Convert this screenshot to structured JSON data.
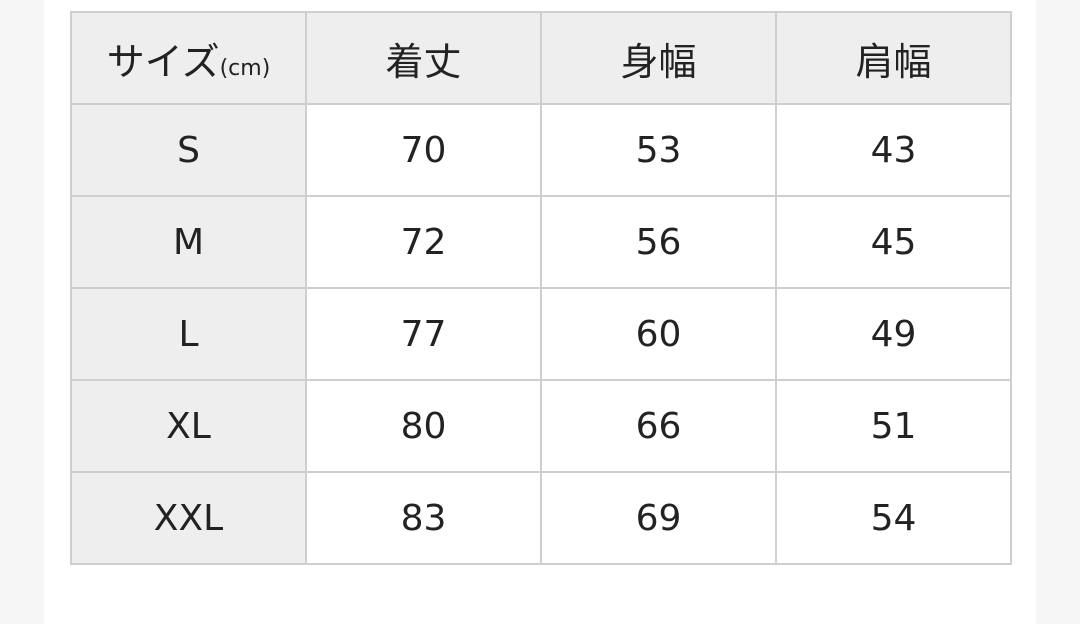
{
  "table": {
    "headers": [
      "サイズ",
      "着丈",
      "身幅",
      "肩幅"
    ],
    "unit": "(cm)",
    "rows": [
      {
        "size": "S",
        "values": [
          "70",
          "53",
          "43"
        ]
      },
      {
        "size": "M",
        "values": [
          "72",
          "56",
          "45"
        ]
      },
      {
        "size": "L",
        "values": [
          "77",
          "60",
          "49"
        ]
      },
      {
        "size": "XL",
        "values": [
          "80",
          "66",
          "51"
        ]
      },
      {
        "size": "XXL",
        "values": [
          "83",
          "69",
          "54"
        ]
      }
    ]
  }
}
